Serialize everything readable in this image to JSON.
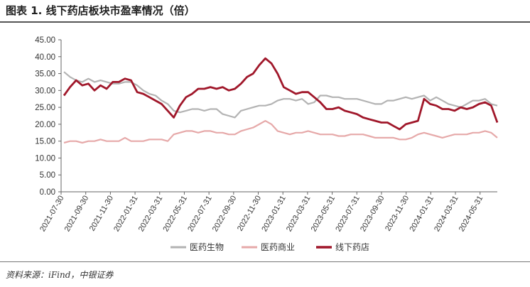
{
  "title": "图表 1. 线下药店板块市盈率情况（倍）",
  "source": "资料来源：iFind，中银证券",
  "chart_data": {
    "type": "line",
    "ylim": [
      0,
      45
    ],
    "yticks": [
      "0.00",
      "5.00",
      "10.00",
      "15.00",
      "20.00",
      "25.00",
      "30.00",
      "35.00",
      "40.00",
      "45.00"
    ],
    "xticks": [
      "2021-07-30",
      "2021-09-30",
      "2021-11-30",
      "2022-01-31",
      "2022-03-31",
      "2022-05-31",
      "2022-07-31",
      "2022-09-30",
      "2022-11-30",
      "2023-01-31",
      "2023-03-31",
      "2023-05-31",
      "2023-07-31",
      "2023-09-30",
      "2023-11-30",
      "2024-01-31",
      "2024-03-31",
      "2024-05-31"
    ],
    "grid": false,
    "legend_position": "bottom",
    "series": [
      {
        "name": "医药生物",
        "color": "#b3b3b3",
        "values": [
          35.5,
          34.0,
          33.0,
          32.5,
          33.5,
          32.5,
          33.0,
          32.5,
          32.0,
          32.0,
          32.5,
          32.5,
          31.5,
          30.0,
          29.0,
          28.5,
          27.0,
          26.0,
          24.0,
          23.5,
          24.0,
          24.5,
          24.5,
          24.0,
          24.5,
          24.5,
          23.0,
          22.5,
          22.0,
          24.0,
          24.5,
          25.0,
          25.5,
          25.5,
          26.0,
          27.0,
          27.5,
          27.5,
          27.0,
          27.5,
          26.0,
          26.5,
          28.5,
          28.5,
          28.0,
          28.0,
          27.5,
          27.5,
          27.5,
          27.0,
          26.5,
          26.0,
          26.0,
          27.0,
          27.0,
          27.5,
          28.0,
          27.5,
          28.0,
          28.5,
          27.0,
          28.0,
          27.0,
          26.0,
          25.5,
          25.0,
          26.0,
          27.0,
          27.0,
          27.5,
          26.0,
          25.5
        ]
      },
      {
        "name": "医药商业",
        "color": "#e6a9a9",
        "values": [
          14.5,
          15.0,
          15.0,
          14.5,
          15.0,
          15.0,
          15.5,
          15.0,
          15.0,
          15.0,
          16.0,
          15.0,
          15.0,
          15.0,
          15.5,
          15.5,
          15.5,
          15.0,
          17.0,
          17.5,
          18.0,
          18.0,
          17.5,
          18.0,
          18.0,
          17.5,
          17.5,
          17.0,
          17.0,
          18.0,
          18.5,
          19.0,
          20.0,
          21.0,
          20.0,
          18.0,
          17.5,
          17.0,
          17.5,
          17.5,
          18.0,
          17.5,
          17.0,
          17.0,
          17.0,
          16.5,
          16.5,
          17.0,
          17.0,
          17.0,
          16.5,
          16.0,
          16.0,
          16.0,
          16.0,
          15.5,
          15.5,
          16.0,
          17.0,
          17.5,
          17.0,
          16.5,
          16.0,
          16.5,
          17.0,
          17.0,
          17.0,
          17.5,
          17.5,
          18.0,
          17.5,
          16.0
        ]
      },
      {
        "name": "线下药店",
        "color": "#a0172a",
        "values": [
          28.5,
          31.0,
          33.0,
          31.5,
          32.0,
          30.0,
          31.5,
          30.5,
          32.5,
          32.5,
          33.5,
          33.0,
          29.5,
          29.0,
          28.0,
          27.0,
          26.0,
          24.0,
          22.0,
          25.5,
          28.0,
          29.0,
          30.5,
          30.5,
          31.0,
          30.5,
          31.0,
          30.0,
          30.5,
          32.0,
          34.0,
          35.0,
          37.5,
          39.5,
          38.0,
          35.0,
          31.0,
          30.0,
          29.0,
          29.5,
          29.5,
          28.0,
          26.5,
          24.5,
          24.5,
          25.0,
          24.0,
          23.5,
          23.0,
          22.0,
          21.5,
          21.0,
          20.5,
          20.5,
          19.5,
          18.5,
          20.0,
          20.5,
          21.0,
          27.5,
          26.0,
          25.5,
          24.5,
          24.5,
          24.0,
          25.0,
          24.5,
          25.0,
          26.0,
          26.5,
          25.5,
          20.5
        ]
      }
    ]
  }
}
